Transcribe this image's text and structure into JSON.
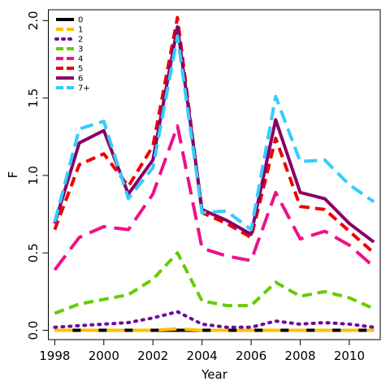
{
  "chart_data": {
    "type": "line",
    "title": "",
    "xlabel": "Year",
    "ylabel": "F",
    "xlim": [
      1997.74,
      2011.26
    ],
    "ylim": [
      -0.06,
      2.07
    ],
    "x_ticks": [
      1998,
      2000,
      2002,
      2004,
      2006,
      2008,
      2010
    ],
    "y_ticks": [
      0.0,
      0.5,
      1.0,
      1.5,
      2.0
    ],
    "x_tick_labels": [
      "1998",
      "2000",
      "2002",
      "2004",
      "2006",
      "2008",
      "2010"
    ],
    "y_tick_labels": [
      "0.0",
      "0.5",
      "1.0",
      "1.5",
      "2.0"
    ],
    "grid": false,
    "legend_position": "top-left",
    "x": [
      1998,
      1999,
      2000,
      2001,
      2002,
      2003,
      2004,
      2005,
      2006,
      2007,
      2008,
      2009,
      2010,
      2011
    ],
    "series": [
      {
        "name": "0",
        "color": "#000000",
        "dash": "solid",
        "values": [
          0.0,
          0.0,
          0.0,
          0.0,
          0.0,
          0.0,
          0.0,
          0.0,
          0.0,
          0.0,
          0.0,
          0.0,
          0.0,
          0.0
        ]
      },
      {
        "name": "1",
        "color": "#FFC000",
        "dash": "longdash",
        "values": [
          0.0,
          0.0,
          0.0,
          0.0,
          0.0,
          0.01,
          0.0,
          0.0,
          0.0,
          0.0,
          0.0,
          0.0,
          0.0,
          0.0
        ]
      },
      {
        "name": "2",
        "color": "#6E0A9B",
        "dash": "dotted",
        "values": [
          0.02,
          0.03,
          0.04,
          0.05,
          0.08,
          0.12,
          0.04,
          0.02,
          0.02,
          0.06,
          0.04,
          0.05,
          0.04,
          0.02
        ]
      },
      {
        "name": "3",
        "color": "#66CC00",
        "dash": "dashed",
        "values": [
          0.11,
          0.17,
          0.2,
          0.23,
          0.33,
          0.5,
          0.19,
          0.16,
          0.16,
          0.31,
          0.22,
          0.25,
          0.21,
          0.14
        ]
      },
      {
        "name": "4",
        "color": "#EE1188",
        "dash": "longdash",
        "values": [
          0.39,
          0.6,
          0.67,
          0.65,
          0.88,
          1.32,
          0.53,
          0.48,
          0.45,
          0.89,
          0.59,
          0.64,
          0.55,
          0.41
        ]
      },
      {
        "name": "5",
        "color": "#EE0000",
        "dash": "dashed",
        "values": [
          0.65,
          1.07,
          1.14,
          0.93,
          1.19,
          2.02,
          0.76,
          0.69,
          0.6,
          1.24,
          0.8,
          0.78,
          0.64,
          0.5
        ]
      },
      {
        "name": "6",
        "color": "#880066",
        "dash": "solid",
        "values": [
          0.69,
          1.21,
          1.29,
          0.88,
          1.1,
          1.96,
          0.78,
          0.71,
          0.62,
          1.36,
          0.89,
          0.85,
          0.69,
          0.57
        ]
      },
      {
        "name": "7+",
        "color": "#33CCFF",
        "dash": "twodash",
        "values": [
          0.7,
          1.3,
          1.35,
          0.85,
          1.05,
          1.9,
          0.76,
          0.77,
          0.65,
          1.51,
          1.09,
          1.1,
          0.94,
          0.83
        ]
      }
    ]
  }
}
